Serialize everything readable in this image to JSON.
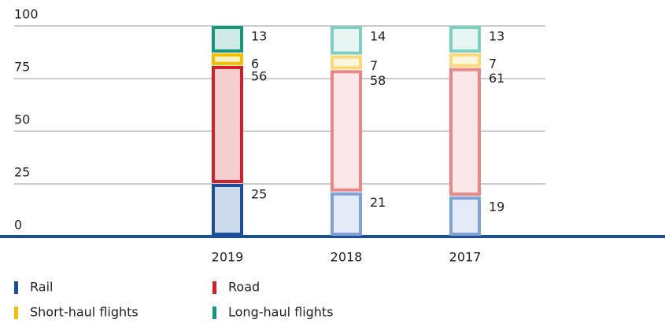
{
  "chart_data": {
    "type": "bar",
    "stacked": true,
    "categories": [
      "2019",
      "2018",
      "2017"
    ],
    "series": [
      {
        "name": "Rail",
        "color": "#1b4f9c",
        "colors": [
          [
            "#1b4f9c",
            "#ccdaec"
          ],
          [
            "#7ea2d4",
            "#e4ebf6"
          ],
          [
            "#7ea2d4",
            "#e4ebf6"
          ]
        ],
        "values": [
          25,
          21,
          19
        ]
      },
      {
        "name": "Road",
        "color": "#d0202a",
        "colors": [
          [
            "#d0202a",
            "#f5cfd0"
          ],
          [
            "#e88688",
            "#fbe7e7"
          ],
          [
            "#e88688",
            "#fbe7e7"
          ]
        ],
        "values": [
          56,
          58,
          61
        ]
      },
      {
        "name": "Short-haul flights",
        "color": "#f5bd00",
        "colors": [
          [
            "#f5bd00",
            "#fdf3c6"
          ],
          [
            "#fbd97a",
            "#fdf6de"
          ],
          [
            "#fbd97a",
            "#fdf6de"
          ]
        ],
        "values": [
          6,
          7,
          7
        ]
      },
      {
        "name": "Long-haul flights",
        "color": "#16967c",
        "colors": [
          [
            "#16967c",
            "#d0ebe5"
          ],
          [
            "#7dcfbf",
            "#e6f5f2"
          ],
          [
            "#7dcfbf",
            "#e6f5f2"
          ]
        ],
        "values": [
          13,
          14,
          13
        ]
      }
    ],
    "ylim": [
      0,
      100
    ],
    "yticks": [
      0,
      25,
      50,
      75,
      100
    ],
    "grid": true
  }
}
